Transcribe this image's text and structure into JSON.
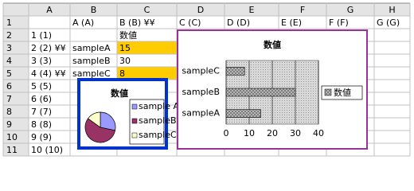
{
  "columns": [
    "A",
    "B",
    "C",
    "D",
    "E",
    "F",
    "G",
    "H"
  ],
  "row_numbers": [
    "1",
    "2",
    "3",
    "4",
    "5",
    "6",
    "7",
    "8",
    "9",
    "10",
    "11"
  ],
  "rows": [
    [
      "",
      "A (A)",
      "B (B) ¥¥",
      "C (C)",
      "D (D)",
      "E (E)",
      "F (F)",
      "G (G)"
    ],
    [
      "1 (1)",
      "",
      "数値",
      "",
      "",
      "",
      "",
      ""
    ],
    [
      "2 (2) ¥¥",
      "sampleA",
      "15",
      "",
      "",
      "",
      "",
      ""
    ],
    [
      "3 (3)",
      "sampleB",
      "30",
      "",
      "",
      "",
      "",
      ""
    ],
    [
      "4 (4) ¥¥",
      "sampleC",
      "8",
      "",
      "",
      "",
      "",
      ""
    ],
    [
      "5 (5)",
      "",
      "",
      "",
      "",
      "",
      "",
      ""
    ],
    [
      "6 (6)",
      "",
      "",
      "",
      "",
      "",
      "",
      ""
    ],
    [
      "7 (7)",
      "",
      "",
      "",
      "",
      "",
      "",
      ""
    ],
    [
      "8 (8)",
      "",
      "",
      "",
      "",
      "",
      "",
      ""
    ],
    [
      "9 (9)",
      "",
      "",
      "",
      "",
      "",
      "",
      ""
    ],
    [
      "10 (10)",
      "",
      "",
      "",
      "",
      "",
      "",
      ""
    ]
  ],
  "chart_data": [
    {
      "type": "pie",
      "title": "数値",
      "categories": [
        "sample A",
        "sampleB",
        "sampleC"
      ],
      "values": [
        15,
        30,
        8
      ],
      "colors": [
        "#9999ff",
        "#993366",
        "#ffffcc"
      ]
    },
    {
      "type": "bar",
      "orientation": "horizontal",
      "title": "数値",
      "categories": [
        "sampleA",
        "sampleB",
        "sampleC"
      ],
      "series": [
        {
          "name": "数値",
          "color": "#c0c0c0",
          "values": [
            15,
            30,
            8
          ]
        }
      ],
      "xlim": [
        0,
        40
      ],
      "xticks": [
        0,
        10,
        20,
        30,
        40
      ]
    }
  ]
}
